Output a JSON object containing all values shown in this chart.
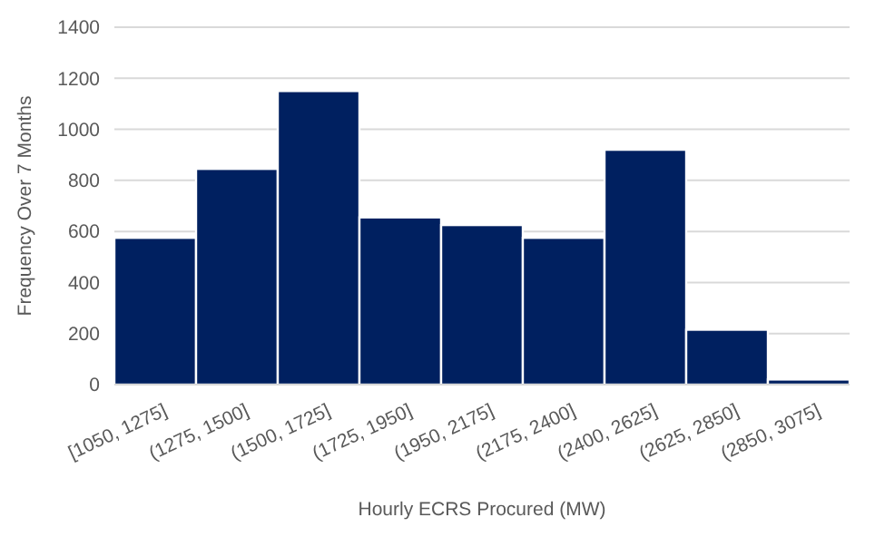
{
  "chart_data": {
    "type": "bar",
    "xlabel": "Hourly ECRS Procured (MW)",
    "ylabel": "Frequency Over 7 Months",
    "categories": [
      "[1050, 1275]",
      "(1275, 1500]",
      "(1500, 1725]",
      "(1725, 1950]",
      "(1950, 2175]",
      "(2175, 2400]",
      "(2400, 2625]",
      "(2625, 2850]",
      "(2850, 3075]"
    ],
    "values": [
      575,
      845,
      1150,
      655,
      625,
      575,
      920,
      215,
      20
    ],
    "color": "#002060",
    "ylim": [
      0,
      1400
    ],
    "yticks": [
      0,
      200,
      400,
      600,
      800,
      1000,
      1200,
      1400
    ],
    "grid": "y"
  }
}
